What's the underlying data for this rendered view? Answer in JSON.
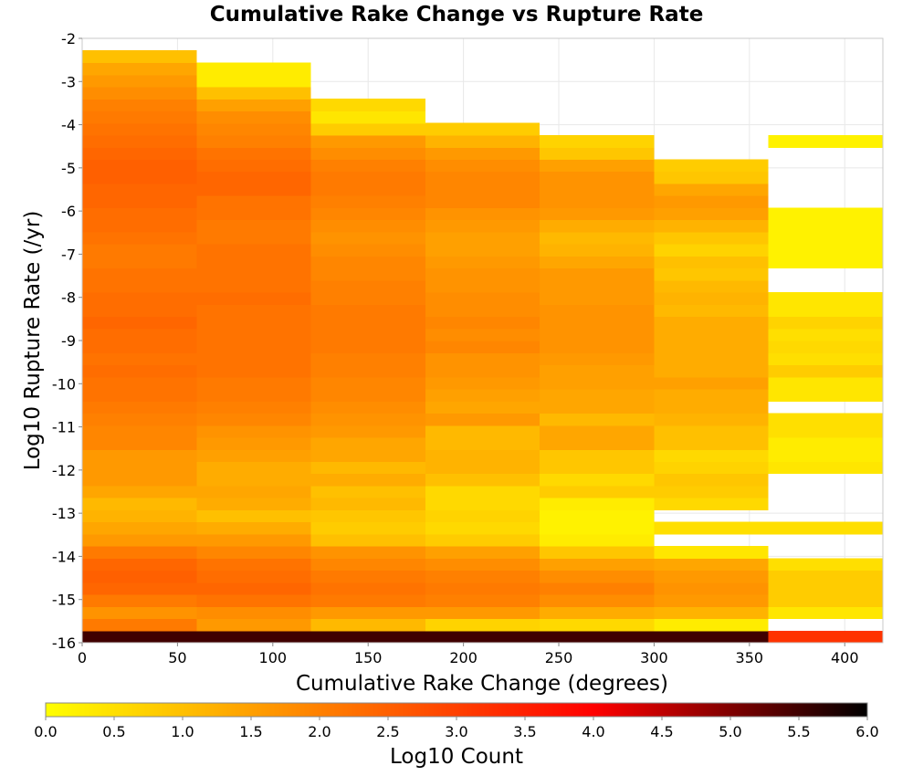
{
  "chart_data": {
    "type": "heatmap",
    "title": "Cumulative Rake Change vs Rupture Rate",
    "xlabel": "Cumulative Rake Change (degrees)",
    "ylabel": "Log10 Rupture Rate (/yr)",
    "xlim": [
      0,
      420
    ],
    "ylim": [
      -16,
      -2
    ],
    "xticks": [
      "0",
      "50",
      "100",
      "150",
      "200",
      "250",
      "300",
      "350",
      "400"
    ],
    "yticks": [
      "-2",
      "-3",
      "-4",
      "-5",
      "-6",
      "-7",
      "-8",
      "-9",
      "-10",
      "-11",
      "-12",
      "-13",
      "-14",
      "-15",
      "-16"
    ],
    "x_bins": [
      0,
      60,
      120,
      180,
      240,
      300,
      360,
      420
    ],
    "y_bin_size": 0.28,
    "y_min": -16.0,
    "grid": true,
    "colorbar": {
      "label": "Log10 Count",
      "min": 0.0,
      "max": 6.0,
      "ticks": [
        "0.0",
        "0.5",
        "1.0",
        "1.5",
        "2.0",
        "2.5",
        "3.0",
        "3.5",
        "4.0",
        "4.5",
        "5.0",
        "5.5",
        "6.0"
      ],
      "colors": [
        "#ffff00",
        "#ff8000",
        "#ff0000",
        "#000000"
      ],
      "position": "bottom"
    },
    "columns": [
      {
        "x_range": [
          0,
          60
        ],
        "log10_count_bottom_to_top": [
          5.5,
          2.1,
          1.7,
          2.1,
          2.4,
          2.5,
          2.4,
          2.1,
          1.6,
          1.4,
          1.2,
          1.1,
          1.4,
          1.6,
          1.6,
          1.6,
          1.9,
          1.9,
          2.0,
          2.1,
          2.2,
          2.2,
          2.3,
          2.2,
          2.3,
          2.3,
          2.4,
          2.3,
          2.3,
          2.2,
          2.2,
          2.1,
          2.1,
          2.2,
          2.3,
          2.3,
          2.4,
          2.4,
          2.5,
          2.5,
          2.4,
          2.3,
          2.2,
          2.1,
          2.0,
          1.8,
          1.6,
          1.4,
          1.0
        ]
      },
      {
        "x_range": [
          60,
          120
        ],
        "log10_count_bottom_to_top": [
          5.5,
          1.6,
          1.8,
          2.2,
          2.4,
          2.3,
          2.2,
          1.9,
          1.6,
          1.3,
          1.0,
          1.3,
          1.4,
          1.3,
          1.3,
          1.5,
          1.6,
          1.7,
          1.9,
          2.0,
          2.1,
          2.1,
          2.2,
          2.2,
          2.2,
          2.2,
          2.2,
          2.2,
          2.3,
          2.2,
          2.2,
          2.2,
          2.2,
          2.1,
          2.1,
          2.2,
          2.2,
          2.4,
          2.4,
          2.3,
          2.2,
          2.0,
          1.9,
          1.8,
          1.5,
          1.0,
          0.3,
          0.3
        ]
      },
      {
        "x_range": [
          120,
          180
        ],
        "log10_count_bottom_to_top": [
          5.5,
          1.1,
          1.6,
          2.1,
          2.2,
          2.1,
          1.9,
          1.7,
          1.0,
          0.8,
          0.9,
          1.1,
          1.0,
          1.3,
          1.1,
          1.4,
          1.4,
          1.6,
          1.7,
          1.8,
          1.9,
          1.9,
          2.0,
          2.0,
          2.1,
          2.1,
          2.1,
          2.1,
          2.0,
          2.0,
          1.9,
          1.9,
          1.8,
          1.7,
          1.8,
          1.9,
          2.0,
          2.1,
          2.1,
          2.0,
          1.8,
          1.6,
          0.8,
          0.4,
          0.6
        ]
      },
      {
        "x_range": [
          180,
          240
        ],
        "log10_count_bottom_to_top": [
          5.5,
          0.7,
          1.6,
          2.0,
          2.1,
          2.0,
          1.8,
          1.5,
          0.8,
          0.6,
          0.7,
          0.6,
          0.6,
          1.0,
          1.2,
          1.2,
          1.1,
          1.1,
          1.6,
          1.4,
          1.5,
          1.6,
          1.7,
          1.7,
          1.9,
          1.8,
          1.9,
          1.8,
          1.8,
          1.7,
          1.7,
          1.6,
          1.5,
          1.5,
          1.6,
          1.7,
          1.9,
          1.9,
          1.9,
          1.8,
          1.6,
          1.2,
          0.8
        ]
      },
      {
        "x_range": [
          240,
          300
        ],
        "log10_count_bottom_to_top": [
          5.5,
          0.6,
          1.3,
          1.8,
          2.0,
          1.8,
          1.5,
          0.9,
          0.3,
          0.2,
          0.2,
          0.3,
          0.8,
          0.6,
          0.9,
          0.9,
          1.4,
          1.4,
          1.1,
          1.4,
          1.4,
          1.5,
          1.5,
          1.6,
          1.7,
          1.7,
          1.7,
          1.7,
          1.6,
          1.6,
          1.6,
          1.4,
          1.2,
          1.1,
          1.3,
          1.6,
          1.7,
          1.7,
          1.7,
          1.5,
          0.9,
          0.7
        ]
      },
      {
        "x_range": [
          300,
          360
        ],
        "log10_count_bottom_to_top": [
          5.5,
          0.3,
          1.2,
          1.6,
          1.7,
          1.6,
          1.4,
          0.4,
          null,
          0.5,
          null,
          0.6,
          0.8,
          0.9,
          0.7,
          0.6,
          1.0,
          1.0,
          1.2,
          1.3,
          1.3,
          1.5,
          1.3,
          1.3,
          1.3,
          1.3,
          1.3,
          1.1,
          1.2,
          1.1,
          0.9,
          1.0,
          0.7,
          0.9,
          1.2,
          1.5,
          1.6,
          1.4,
          0.9,
          0.8
        ]
      },
      {
        "x_range": [
          360,
          420
        ],
        "log10_count_bottom_to_top": [
          3.2,
          null,
          0.4,
          0.8,
          0.8,
          0.8,
          0.5,
          null,
          null,
          0.5,
          null,
          null,
          null,
          null,
          0.4,
          0.3,
          0.3,
          0.5,
          0.5,
          null,
          0.4,
          0.4,
          0.8,
          0.5,
          0.6,
          0.5,
          0.7,
          0.4,
          0.4,
          null,
          null,
          0.2,
          0.2,
          0.2,
          0.2,
          0.2,
          null,
          null,
          null,
          null,
          null,
          0.2
        ]
      }
    ]
  }
}
